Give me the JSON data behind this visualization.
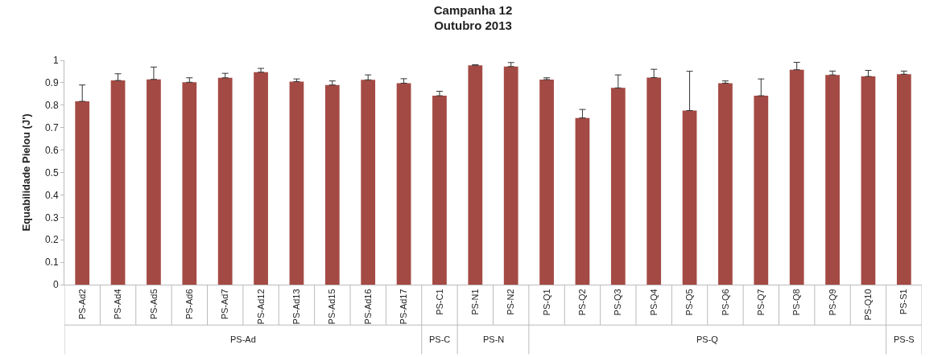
{
  "chart_data": {
    "type": "bar",
    "title": "Campanha 12\nOutubro 2013",
    "ylabel": "Equabilidade Pielou (J')",
    "categories": [
      "PS-Ad2",
      "PS-Ad4",
      "PS-Ad5",
      "PS-Ad6",
      "PS-Ad7",
      "PS-Ad12",
      "PS-Ad13",
      "PS-Ad15",
      "PS-Ad16",
      "PS-Ad17",
      "PS-C1",
      "PS-N1",
      "PS-N2",
      "PS-Q1",
      "PS-Q2",
      "PS-Q3",
      "PS-Q4",
      "PS-Q5",
      "PS-Q6",
      "PS-Q7",
      "PS-Q8",
      "PS-Q9",
      "PS-Q10",
      "PS-S1"
    ],
    "values": [
      0.817,
      0.91,
      0.915,
      0.902,
      0.922,
      0.947,
      0.905,
      0.89,
      0.913,
      0.898,
      0.842,
      0.978,
      0.972,
      0.914,
      0.743,
      0.877,
      0.923,
      0.776,
      0.898,
      0.842,
      0.958,
      0.935,
      0.928,
      0.938
    ],
    "errors": [
      [
        0.817,
        0.89
      ],
      [
        0.91,
        0.94
      ],
      [
        0.915,
        0.97
      ],
      [
        0.902,
        0.922
      ],
      [
        0.922,
        0.942
      ],
      [
        0.947,
        0.964
      ],
      [
        0.905,
        0.917
      ],
      [
        0.89,
        0.908
      ],
      [
        0.913,
        0.935
      ],
      [
        0.898,
        0.918
      ],
      [
        0.842,
        0.862
      ],
      [
        0.978,
        0.98
      ],
      [
        0.972,
        0.99
      ],
      [
        0.914,
        0.922
      ],
      [
        0.743,
        0.781
      ],
      [
        0.877,
        0.935
      ],
      [
        0.923,
        0.96
      ],
      [
        0.776,
        0.951
      ],
      [
        0.898,
        0.908
      ],
      [
        0.842,
        0.917
      ],
      [
        0.958,
        0.991
      ],
      [
        0.935,
        0.952
      ],
      [
        0.928,
        0.955
      ],
      [
        0.938,
        0.952
      ]
    ],
    "color": "#a44a44",
    "ylim": [
      0,
      1
    ],
    "yticks": [
      0,
      0.1,
      0.2,
      0.3,
      0.4,
      0.5,
      0.6,
      0.7,
      0.8,
      0.9,
      1
    ],
    "grid": false,
    "legend": false,
    "annotations": [
      "PS-Ad",
      "PS-C",
      "PS-N",
      "PS-Q",
      "PS-S"
    ]
  }
}
